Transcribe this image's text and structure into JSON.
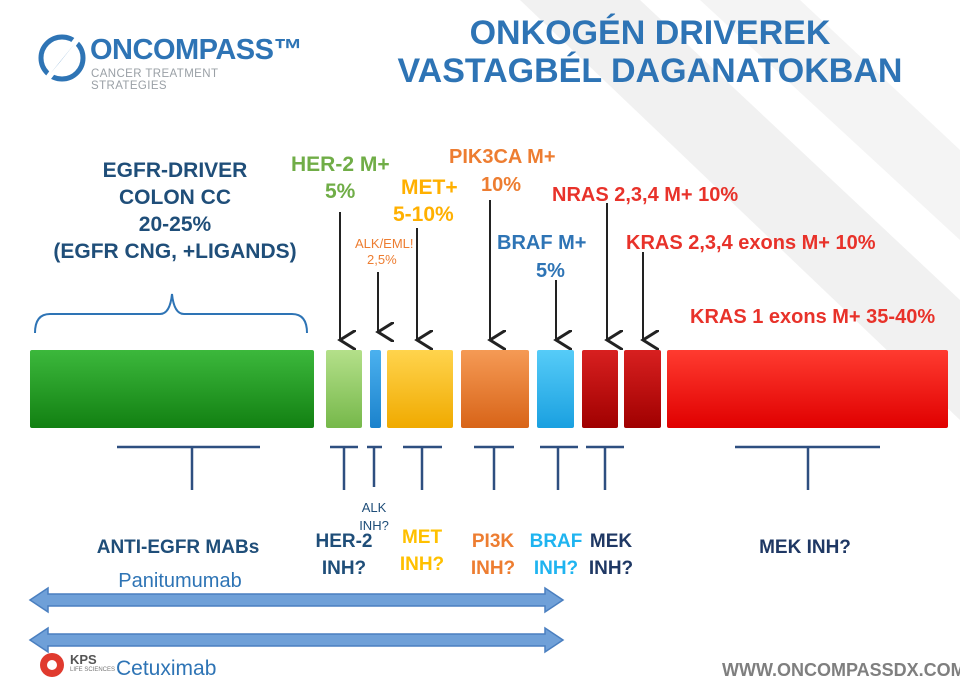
{
  "title": {
    "line1": "ONKOGÉN DRIVEREK",
    "line2": "VASTAGBÉL DAGANATOKBAN"
  },
  "logo": {
    "word": "ONCOMPASS™",
    "tagline": "CANCER TREATMENT STRATEGIES"
  },
  "egfr_driver": {
    "line1": "EGFR-DRIVER",
    "line2": "COLON CC",
    "line3": "20-25%",
    "line4": "(EGFR CNG, +LIGANDS)"
  },
  "drivers": {
    "her2": {
      "line1": "HER-2 M+",
      "line2": "5%"
    },
    "met": {
      "line1": "MET+",
      "line2": "5-10%"
    },
    "alk": {
      "line1": "ALK/EML!",
      "line2": "2,5%"
    },
    "pik3ca": {
      "line1": "PIK3CA M+",
      "line2": "10%"
    },
    "braf": {
      "line1": "BRAF M+",
      "line2": "5%"
    },
    "nras": "NRAS 2,3,4 M+ 10%",
    "kras234": "KRAS 2,3,4 exons M+ 10%",
    "kras1": "KRAS 1 exons M+ 35-40%"
  },
  "colors": {
    "egfr": "#1a8a1a",
    "her2": "#92d050",
    "alk": "#1e90d8",
    "met": "#ffc000",
    "pik3ca": "#ed7d31",
    "braf": "#1fb4f0",
    "nras": "#c00000",
    "kras234": "#c00000",
    "kras1": "#ff0000",
    "title": "#2e74b5",
    "arrow": "#5b9bd5"
  },
  "inhibitors": {
    "anti_egfr": "ANTI-EGFR MABs",
    "panitumumab": "Panitumumab",
    "cetuximab": "Cetuximab",
    "her2": {
      "line1": "HER-2",
      "line2": "INH?"
    },
    "alk": {
      "line1": "ALK",
      "line2": "INH?"
    },
    "met": {
      "line1": "MET",
      "line2": "INH?"
    },
    "pi3k": {
      "line1": "PI3K",
      "line2": "INH?"
    },
    "braf": {
      "line1": "BRAF",
      "line2": "INH?"
    },
    "mek": {
      "line1": "MEK",
      "line2": "INH?"
    },
    "mek_kras": "MEK INH?"
  },
  "footer": {
    "url": "WWW.ONCOMPASSDX.COM",
    "kps": "KPS",
    "kps_sub": "LIFE SCIENCES"
  }
}
